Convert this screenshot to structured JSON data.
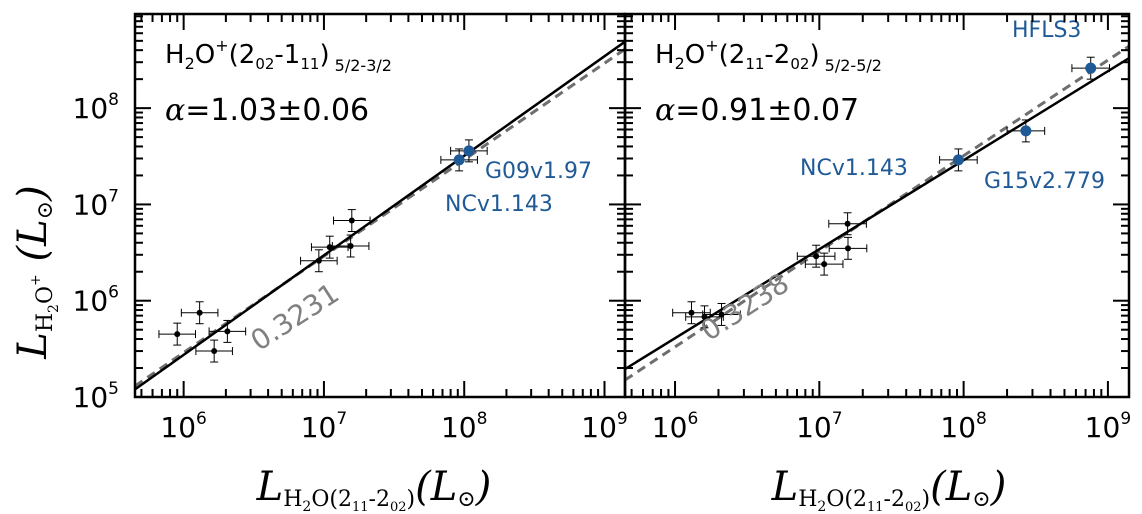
{
  "chart_data": [
    {
      "type": "scatter",
      "panel": "left",
      "xscale": "log",
      "yscale": "log",
      "xlim": [
        450000,
        1400000000
      ],
      "ylim": [
        100000,
        950000000
      ],
      "xticks": [
        {
          "value": 1000000,
          "exp": "6"
        },
        {
          "value": 10000000,
          "exp": "7"
        },
        {
          "value": 100000000,
          "exp": "8"
        },
        {
          "value": 1000000000,
          "exp": "9"
        }
      ],
      "yticks": [
        {
          "value": 100000,
          "exp": "5"
        },
        {
          "value": 1000000,
          "exp": "6"
        },
        {
          "value": 10000000,
          "exp": "7"
        },
        {
          "value": 100000000,
          "exp": "8"
        }
      ],
      "transition": {
        "main": "H2O+(202-111)",
        "sub": "5/2-3/2"
      },
      "alpha_text": "=1.03±0.06",
      "slope_label": "0.3231",
      "black_points": [
        {
          "x": 900000,
          "y": 450000
        },
        {
          "x": 1300000,
          "y": 750000
        },
        {
          "x": 1650000,
          "y": 300000
        },
        {
          "x": 2050000,
          "y": 480000
        },
        {
          "x": 9200000,
          "y": 2600000
        },
        {
          "x": 11000000,
          "y": 3600000
        },
        {
          "x": 15500000,
          "y": 3700000
        },
        {
          "x": 15800000,
          "y": 6800000
        }
      ],
      "blue_points": [
        {
          "label": "NCv1.143",
          "x": 92000000,
          "y": 29000000
        },
        {
          "label": "G09v1.97",
          "x": 108000000,
          "y": 36000000
        }
      ],
      "fit_line": [
        {
          "x": 450000,
          "y": 120000
        },
        {
          "x": 1400000000,
          "y": 490000000
        }
      ],
      "dashed_line": [
        {
          "x": 450000,
          "y": 130000
        },
        {
          "x": 1400000000,
          "y": 410000000
        }
      ]
    },
    {
      "type": "scatter",
      "panel": "right",
      "xscale": "log",
      "yscale": "log",
      "xlim": [
        450000,
        1400000000
      ],
      "ylim": [
        100000,
        950000000
      ],
      "xticks": [
        {
          "value": 1000000,
          "exp": "6"
        },
        {
          "value": 10000000,
          "exp": "7"
        },
        {
          "value": 100000000,
          "exp": "8"
        },
        {
          "value": 1000000000,
          "exp": "9"
        }
      ],
      "transition": {
        "main": "H2O+(211-202)",
        "sub": "5/2-5/2"
      },
      "alpha_text": "=0.91±0.07",
      "slope_label": "0.3238",
      "black_points": [
        {
          "x": 1300000,
          "y": 750000
        },
        {
          "x": 1600000,
          "y": 680000
        },
        {
          "x": 2100000,
          "y": 720000
        },
        {
          "x": 9500000,
          "y": 2900000
        },
        {
          "x": 10800000,
          "y": 2400000
        },
        {
          "x": 15700000,
          "y": 6300000
        },
        {
          "x": 15800000,
          "y": 3500000
        }
      ],
      "blue_points": [
        {
          "label": "NCv1.143",
          "x": 92000000,
          "y": 29000000
        },
        {
          "label": "G15v2.779",
          "x": 270000000,
          "y": 58000000
        },
        {
          "label": "HFLS3",
          "x": 760000000,
          "y": 260000000
        }
      ],
      "fit_line": [
        {
          "x": 450000,
          "y": 195000
        },
        {
          "x": 1400000000,
          "y": 330000000
        }
      ],
      "dashed_line": [
        {
          "x": 450000,
          "y": 150000
        },
        {
          "x": 1400000000,
          "y": 440000000
        }
      ]
    }
  ],
  "axis_labels": {
    "y_label": "LH2O+ (L☉)",
    "x_label": "LH2O(211-202) (L☉)"
  },
  "colors": {
    "black": "#000000",
    "blue": "#1f5a96",
    "gray": "#808080",
    "dash": "#6e6e6e"
  }
}
